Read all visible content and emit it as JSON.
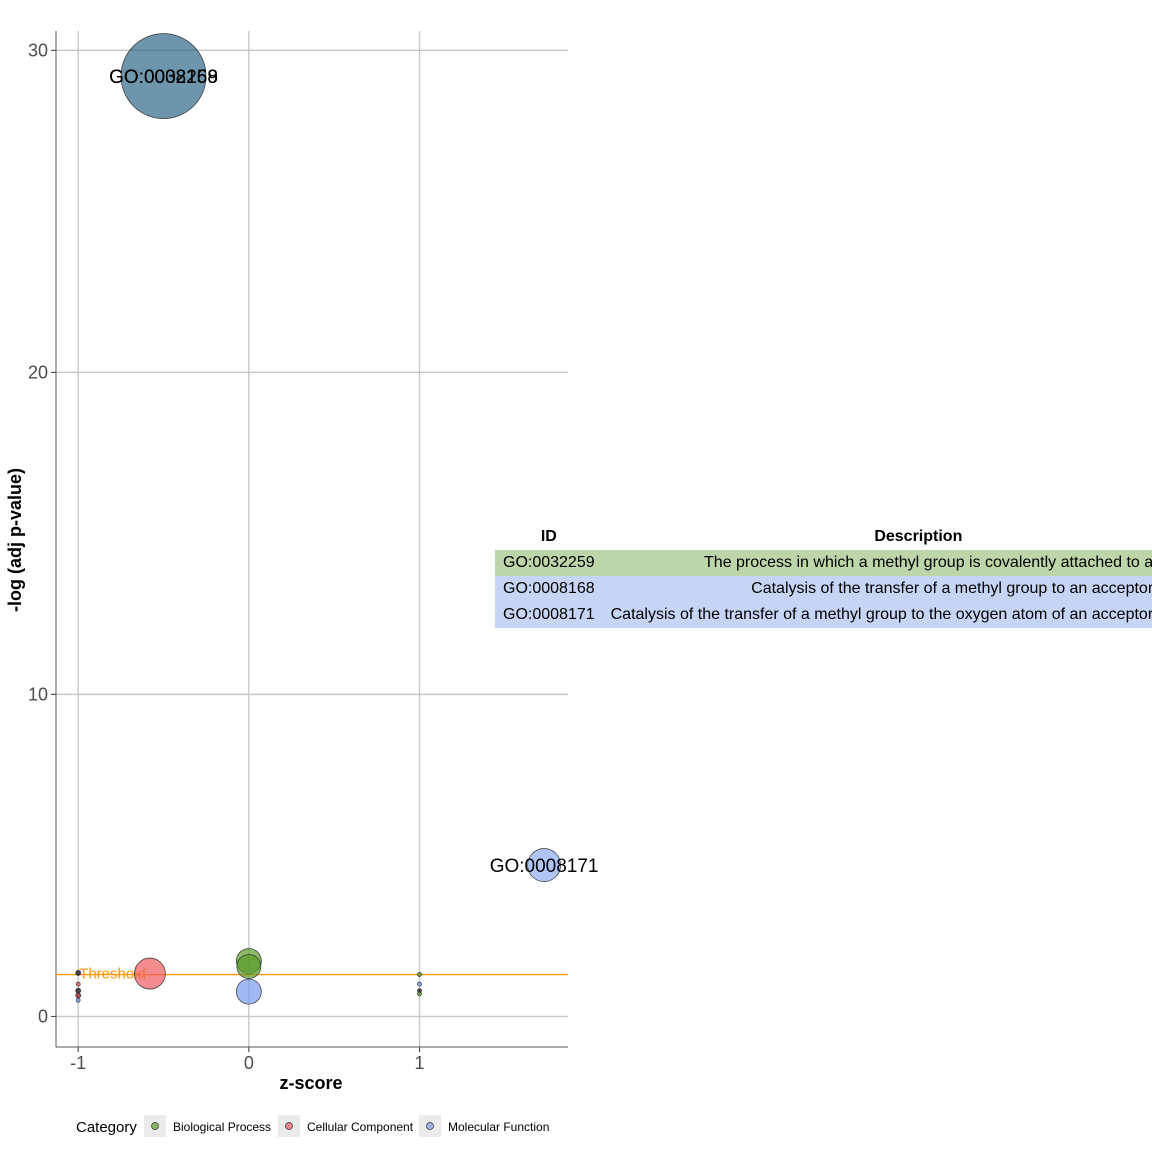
{
  "chart_data": {
    "type": "scatter",
    "title": "",
    "xlabel": "z-score",
    "ylabel": "-log (adj p-value)",
    "xlim": [
      -1.13,
      1.87
    ],
    "ylim": [
      -0.95,
      30.6
    ],
    "x_ticks": [
      -1,
      0,
      1
    ],
    "x_tick_labels": [
      "-1",
      "0",
      "1"
    ],
    "y_ticks": [
      0,
      10,
      20,
      30
    ],
    "y_tick_labels": [
      "0",
      "10",
      "20",
      "30"
    ],
    "grid": true,
    "threshold": {
      "value": 1.3,
      "label": "Threshold",
      "color": "#ff9900"
    },
    "legend": {
      "title": "Category",
      "placement": "bottom",
      "items": [
        {
          "name": "Biological Process",
          "color": "#5a9a2a"
        },
        {
          "name": "Cellular Component",
          "color": "#ee5a60"
        },
        {
          "name": "Molecular Function",
          "color": "#7b9cf0"
        }
      ]
    },
    "points": [
      {
        "x": -0.5,
        "y": 29.2,
        "size": 85,
        "category": "Biological Process",
        "color": "#1f5c80",
        "alpha": 0.65,
        "label": "GO:0032259"
      },
      {
        "x": -0.5,
        "y": 29.2,
        "size": 85,
        "category": "Molecular Function",
        "color": "#1f5c80",
        "alpha": 0.0,
        "label": "GO:0008168"
      },
      {
        "x": 1.73,
        "y": 4.7,
        "size": 33,
        "category": "Molecular Function",
        "color": "#7b9cf0",
        "alpha": 0.6,
        "label": "GO:0008171"
      },
      {
        "x": -0.58,
        "y": 1.33,
        "size": 31,
        "category": "Cellular Component",
        "color": "#ee5a60",
        "alpha": 0.7,
        "label": ""
      },
      {
        "x": 0.0,
        "y": 1.72,
        "size": 25,
        "category": "Biological Process",
        "color": "#5a9a2a",
        "alpha": 0.7,
        "label": ""
      },
      {
        "x": 0.0,
        "y": 1.55,
        "size": 24,
        "category": "Biological Process",
        "color": "#5a9a2a",
        "alpha": 0.7,
        "label": ""
      },
      {
        "x": 0.0,
        "y": 0.77,
        "size": 25,
        "category": "Molecular Function",
        "color": "#7b9cf0",
        "alpha": 0.7,
        "label": ""
      },
      {
        "x": -1.0,
        "y": 1.35,
        "size": 5,
        "category": "Biological Process",
        "color": "#333333",
        "alpha": 0.9,
        "label": ""
      },
      {
        "x": -1.0,
        "y": 1.0,
        "size": 4,
        "category": "Cellular Component",
        "color": "#ee5a60",
        "alpha": 0.8,
        "label": ""
      },
      {
        "x": -1.0,
        "y": 0.8,
        "size": 5,
        "category": "Biological Process",
        "color": "#333333",
        "alpha": 0.9,
        "label": ""
      },
      {
        "x": -1.0,
        "y": 0.65,
        "size": 5,
        "category": "Cellular Component",
        "color": "#aa3344",
        "alpha": 0.9,
        "label": ""
      },
      {
        "x": -1.0,
        "y": 0.5,
        "size": 4,
        "category": "Molecular Function",
        "color": "#7b9cf0",
        "alpha": 0.8,
        "label": ""
      },
      {
        "x": 1.0,
        "y": 1.3,
        "size": 4,
        "category": "Biological Process",
        "color": "#5a9a2a",
        "alpha": 0.8,
        "label": ""
      },
      {
        "x": 1.0,
        "y": 1.0,
        "size": 4,
        "category": "Molecular Function",
        "color": "#7b9cf0",
        "alpha": 0.8,
        "label": ""
      },
      {
        "x": 1.0,
        "y": 0.8,
        "size": 4,
        "category": "Biological Process",
        "color": "#333333",
        "alpha": 0.9,
        "label": ""
      },
      {
        "x": 1.0,
        "y": 0.7,
        "size": 4,
        "category": "Biological Process",
        "color": "#5a9a2a",
        "alpha": 0.8,
        "label": ""
      }
    ]
  },
  "table": {
    "headers": {
      "id": "ID",
      "description": "Description"
    },
    "rows": [
      {
        "id": "GO:0032259",
        "description": "The process in which a methyl group is covalently attached to a molecule.",
        "color": "#bcd5a9"
      },
      {
        "id": "GO:0008168",
        "description": "Catalysis of the transfer of a methyl group to an acceptor molecule.",
        "color": "#c6d5f5"
      },
      {
        "id": "GO:0008171",
        "description": "Catalysis of the transfer of a methyl group to the oxygen atom of an acceptor molecule.",
        "color": "#c6d5f5"
      }
    ]
  }
}
